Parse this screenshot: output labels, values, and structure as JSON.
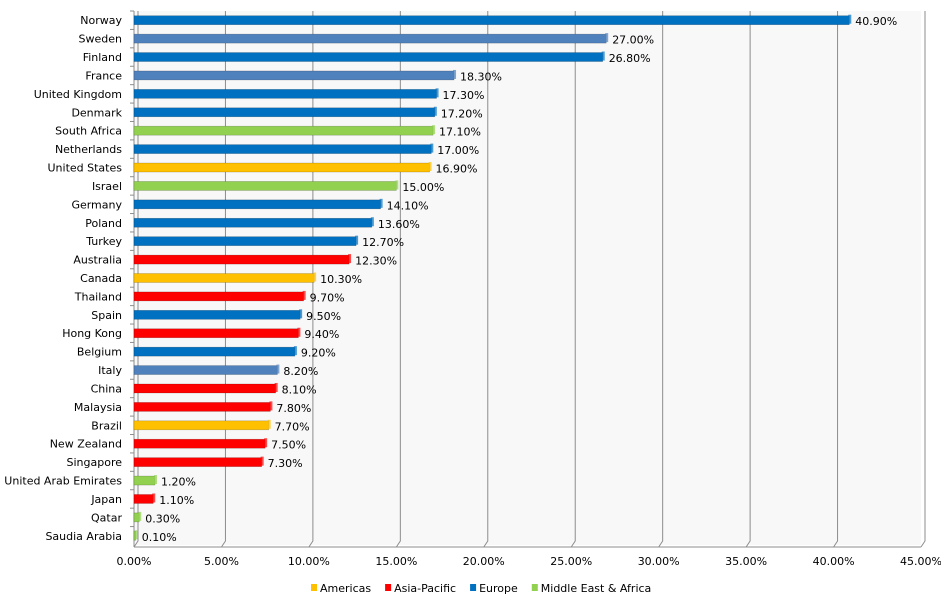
{
  "chart_data": {
    "type": "bar",
    "orientation": "horizontal",
    "title": "",
    "xlabel": "",
    "ylabel": "",
    "xlim": [
      0,
      45
    ],
    "x_ticks": [
      "0.00%",
      "5.00%",
      "10.00%",
      "15.00%",
      "20.00%",
      "25.00%",
      "30.00%",
      "35.00%",
      "40.00%",
      "45.00%"
    ],
    "grid": "vertical major gridlines",
    "legend_position": "bottom",
    "legend": [
      {
        "name": "Americas",
        "color": "#ffc000"
      },
      {
        "name": "Asia-Pacific",
        "color": "#ff0000"
      },
      {
        "name": "Europe",
        "color": "#0070c0"
      },
      {
        "name": "Middle East & Africa",
        "color": "#92d050"
      }
    ],
    "points": [
      {
        "category": "Norway",
        "value": 40.9,
        "label": "40.90%",
        "region": "Europe",
        "color": "#0070c0"
      },
      {
        "category": "Sweden",
        "value": 27.0,
        "label": "27.00%",
        "region": "Europe",
        "color": "#4f81bd"
      },
      {
        "category": "Finland",
        "value": 26.8,
        "label": "26.80%",
        "region": "Europe",
        "color": "#0070c0"
      },
      {
        "category": "France",
        "value": 18.3,
        "label": "18.30%",
        "region": "Europe",
        "color": "#4f81bd"
      },
      {
        "category": "United Kingdom",
        "value": 17.3,
        "label": "17.30%",
        "region": "Europe",
        "color": "#0070c0"
      },
      {
        "category": "Denmark",
        "value": 17.2,
        "label": "17.20%",
        "region": "Europe",
        "color": "#0070c0"
      },
      {
        "category": "South Africa",
        "value": 17.1,
        "label": "17.10%",
        "region": "Middle East & Africa",
        "color": "#92d050"
      },
      {
        "category": "Netherlands",
        "value": 17.0,
        "label": "17.00%",
        "region": "Europe",
        "color": "#0070c0"
      },
      {
        "category": "United States",
        "value": 16.9,
        "label": "16.90%",
        "region": "Americas",
        "color": "#ffc000"
      },
      {
        "category": "Israel",
        "value": 15.0,
        "label": "15.00%",
        "region": "Middle East & Africa",
        "color": "#92d050"
      },
      {
        "category": "Germany",
        "value": 14.1,
        "label": "14.10%",
        "region": "Europe",
        "color": "#0070c0"
      },
      {
        "category": "Poland",
        "value": 13.6,
        "label": "13.60%",
        "region": "Europe",
        "color": "#0070c0"
      },
      {
        "category": "Turkey",
        "value": 12.7,
        "label": "12.70%",
        "region": "Europe",
        "color": "#0070c0"
      },
      {
        "category": "Australia",
        "value": 12.3,
        "label": "12.30%",
        "region": "Asia-Pacific",
        "color": "#ff0000"
      },
      {
        "category": "Canada",
        "value": 10.3,
        "label": "10.30%",
        "region": "Americas",
        "color": "#ffc000"
      },
      {
        "category": "Thailand",
        "value": 9.7,
        "label": "9.70%",
        "region": "Asia-Pacific",
        "color": "#ff0000"
      },
      {
        "category": "Spain",
        "value": 9.5,
        "label": "9.50%",
        "region": "Europe",
        "color": "#0070c0"
      },
      {
        "category": "Hong Kong",
        "value": 9.4,
        "label": "9.40%",
        "region": "Asia-Pacific",
        "color": "#ff0000"
      },
      {
        "category": "Belgium",
        "value": 9.2,
        "label": "9.20%",
        "region": "Europe",
        "color": "#0070c0"
      },
      {
        "category": "Italy",
        "value": 8.2,
        "label": "8.20%",
        "region": "Europe",
        "color": "#4f81bd"
      },
      {
        "category": "China",
        "value": 8.1,
        "label": "8.10%",
        "region": "Asia-Pacific",
        "color": "#ff0000"
      },
      {
        "category": "Malaysia",
        "value": 7.8,
        "label": "7.80%",
        "region": "Asia-Pacific",
        "color": "#ff0000"
      },
      {
        "category": "Brazil",
        "value": 7.7,
        "label": "7.70%",
        "region": "Americas",
        "color": "#ffc000"
      },
      {
        "category": "New Zealand",
        "value": 7.5,
        "label": "7.50%",
        "region": "Asia-Pacific",
        "color": "#ff0000"
      },
      {
        "category": "Singapore",
        "value": 7.3,
        "label": "7.30%",
        "region": "Asia-Pacific",
        "color": "#ff0000"
      },
      {
        "category": "United Arab Emirates",
        "value": 1.2,
        "label": "1.20%",
        "region": "Middle East & Africa",
        "color": "#92d050"
      },
      {
        "category": "Japan",
        "value": 1.1,
        "label": "1.10%",
        "region": "Asia-Pacific",
        "color": "#ff0000"
      },
      {
        "category": "Qatar",
        "value": 0.3,
        "label": "0.30%",
        "region": "Middle East & Africa",
        "color": "#92d050"
      },
      {
        "category": "Saudia Arabia",
        "value": 0.1,
        "label": "0.10%",
        "region": "Middle East & Africa",
        "color": "#92d050"
      }
    ]
  }
}
